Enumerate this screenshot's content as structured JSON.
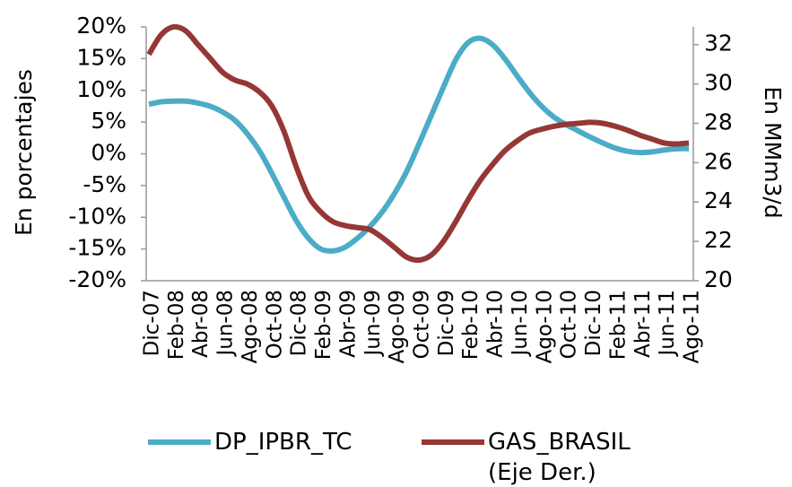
{
  "chart_data": {
    "type": "line",
    "categories": [
      "Dic-07",
      null,
      "Feb-08",
      null,
      "Abr-08",
      null,
      "Jun-08",
      null,
      "Ago-08",
      null,
      "Oct-08",
      null,
      "Dic-08",
      null,
      "Feb-09",
      null,
      "Abr-09",
      null,
      "Jun-09",
      null,
      "Ago-09",
      null,
      "Oct-09",
      null,
      "Dic-09",
      null,
      "Feb-10",
      null,
      "Abr-10",
      null,
      "Jun-10",
      null,
      "Ago-10",
      null,
      "Oct-10",
      null,
      "Dic-10",
      null,
      "Feb-11",
      null,
      "Abr-11",
      null,
      "Jun-11",
      null,
      "Ago-11"
    ],
    "series": [
      {
        "name": "DP_IPBR_TC",
        "color": "#4bacc6",
        "values": [
          7.8,
          8.2,
          8.3,
          8.3,
          8.0,
          7.5,
          6.6,
          5.3,
          3.2,
          0.5,
          -3,
          -6.8,
          -10.5,
          -13.3,
          -15,
          -15.3,
          -14.7,
          -13.3,
          -11.5,
          -9.2,
          -6.3,
          -2.8,
          1.5,
          6,
          10.5,
          14.8,
          17.5,
          18.2,
          17.2,
          15,
          12.3,
          9.7,
          7.5,
          5.8,
          4.6,
          3.6,
          2.6,
          1.7,
          0.9,
          0.4,
          0.2,
          0.3,
          0.6,
          0.8,
          0.8
        ]
      },
      {
        "name": "GAS_BRASIL (Eje Der.)",
        "color": "#953735",
        "axis": "y2",
        "values": [
          31.5,
          32.5,
          32.9,
          32.7,
          32.0,
          31.3,
          30.6,
          30.2,
          30.0,
          29.6,
          28.9,
          27.6,
          25.8,
          24.3,
          23.5,
          23.0,
          22.8,
          22.7,
          22.6,
          22.2,
          21.7,
          21.2,
          21.05,
          21.3,
          22.0,
          23.0,
          24.1,
          25.1,
          25.9,
          26.6,
          27.1,
          27.5,
          27.7,
          27.85,
          27.95,
          28.0,
          28.05,
          28.0,
          27.85,
          27.65,
          27.4,
          27.2,
          27.0,
          26.95,
          27.0
        ]
      }
    ],
    "ylabel": "En porcentajes",
    "y2label": "En MMm3/d",
    "ylim": [
      -20,
      20
    ],
    "yticks": [
      {
        "value": -20,
        "label": "-20%"
      },
      {
        "value": -15,
        "label": "-15%"
      },
      {
        "value": -10,
        "label": "-10%"
      },
      {
        "value": -5,
        "label": "-5%"
      },
      {
        "value": 0,
        "label": "0%"
      },
      {
        "value": 5,
        "label": "5%"
      },
      {
        "value": 10,
        "label": "10%"
      },
      {
        "value": 15,
        "label": "15%"
      },
      {
        "value": 20,
        "label": "20%"
      }
    ],
    "y2lim": [
      20,
      32.9
    ],
    "y2ticks": [
      20,
      22,
      24,
      26,
      28,
      30,
      32
    ],
    "legend": "bottom"
  }
}
